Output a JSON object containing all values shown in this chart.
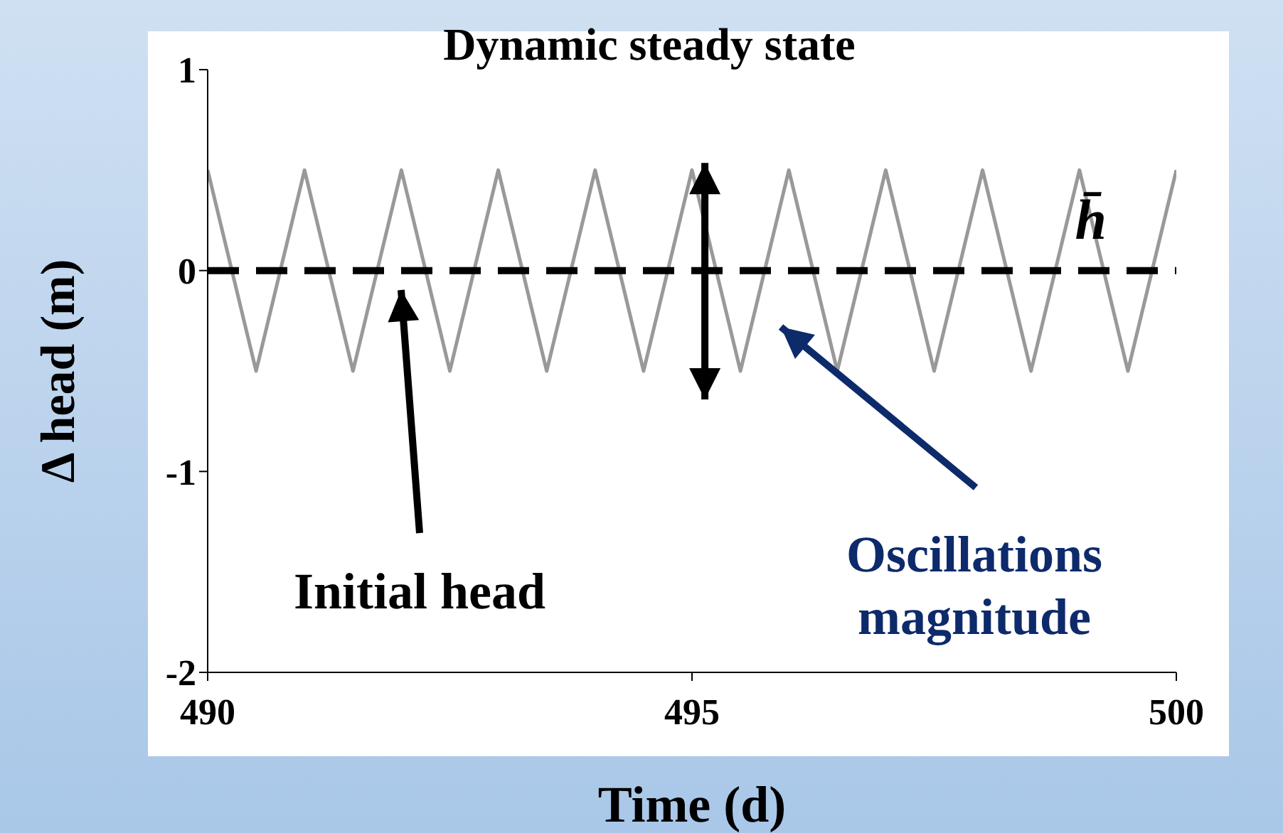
{
  "chart_data": {
    "type": "line",
    "title": "Dynamic steady state",
    "xlabel": "Time (d)",
    "ylabel": "Δ head (m)",
    "x": [
      490,
      490.5,
      491,
      491.5,
      492,
      492.5,
      493,
      493.5,
      494,
      494.5,
      495,
      495.5,
      496,
      496.5,
      497,
      497.5,
      498,
      498.5,
      499,
      499.5,
      500
    ],
    "series": [
      {
        "color": "#999999",
        "values": [
          0.5,
          -0.5,
          0.5,
          -0.5,
          0.5,
          -0.5,
          0.5,
          -0.5,
          0.5,
          -0.5,
          0.5,
          -0.5,
          0.5,
          -0.5,
          0.5,
          -0.5,
          0.5,
          -0.5,
          0.5,
          -0.5,
          0.5
        ]
      }
    ],
    "xlim": [
      490,
      500
    ],
    "xticks": [
      490,
      495,
      500
    ],
    "ylim": [
      -2,
      1
    ],
    "yticks": [
      -2,
      -1,
      0,
      1
    ],
    "ref_lines": [
      {
        "axis": "y",
        "value": 0,
        "color": "#000000",
        "line_style": "dashed"
      }
    ],
    "annotations": [
      "Initial head",
      "Oscillations magnitude",
      "h̄"
    ],
    "grid": false,
    "legend": false,
    "marker": "none",
    "line_style": "solid"
  }
}
